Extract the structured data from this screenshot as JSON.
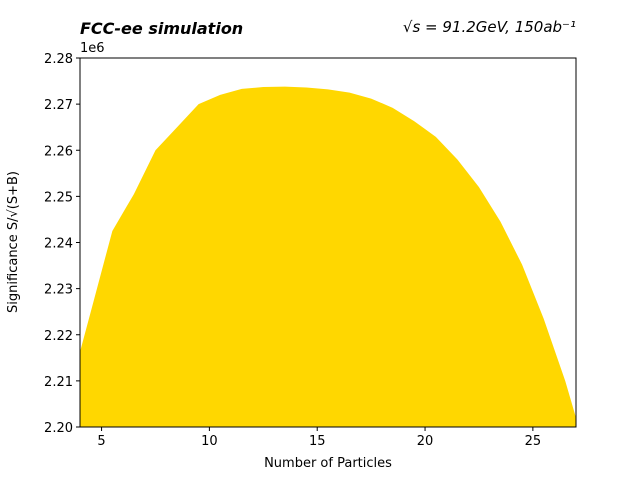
{
  "chart_data": {
    "type": "area",
    "title": "FCC-ee simulation",
    "annotation_right": "√s = 91.2GeV, 150ab⁻¹",
    "xlabel": "Number of Particles",
    "ylabel": "Significance S/√(S+B)",
    "y_offset_label": "1e6",
    "xlim": [
      4,
      27
    ],
    "ylim": [
      2200000,
      2280000
    ],
    "xticks": [
      5,
      10,
      15,
      20,
      25
    ],
    "xtick_labels": [
      "5",
      "10",
      "15",
      "20",
      "25"
    ],
    "yticks": [
      2200000,
      2210000,
      2220000,
      2230000,
      2240000,
      2250000,
      2260000,
      2270000,
      2280000
    ],
    "ytick_labels": [
      "2.20",
      "2.21",
      "2.22",
      "2.23",
      "2.24",
      "2.25",
      "2.26",
      "2.27",
      "2.28"
    ],
    "grid": false,
    "fill_color": "#FFD700",
    "series": [
      {
        "x": [
          4,
          4.5,
          5.5,
          6.5,
          7.5,
          8.5,
          9.5,
          10.5,
          11.5,
          12.5,
          13.5,
          14.5,
          15.5,
          16.5,
          17.5,
          18.5,
          19.5,
          20.5,
          21.5,
          22.5,
          23.5,
          24.5,
          25.5,
          26.5,
          27
        ],
        "values": [
          2216300,
          2225000,
          2242500,
          2250500,
          2260000,
          2265000,
          2270000,
          2272000,
          2273300,
          2273700,
          2273800,
          2273600,
          2273200,
          2272500,
          2271200,
          2269200,
          2266300,
          2262900,
          2258000,
          2252000,
          2244500,
          2235200,
          2223500,
          2210000,
          2202000
        ]
      }
    ]
  }
}
